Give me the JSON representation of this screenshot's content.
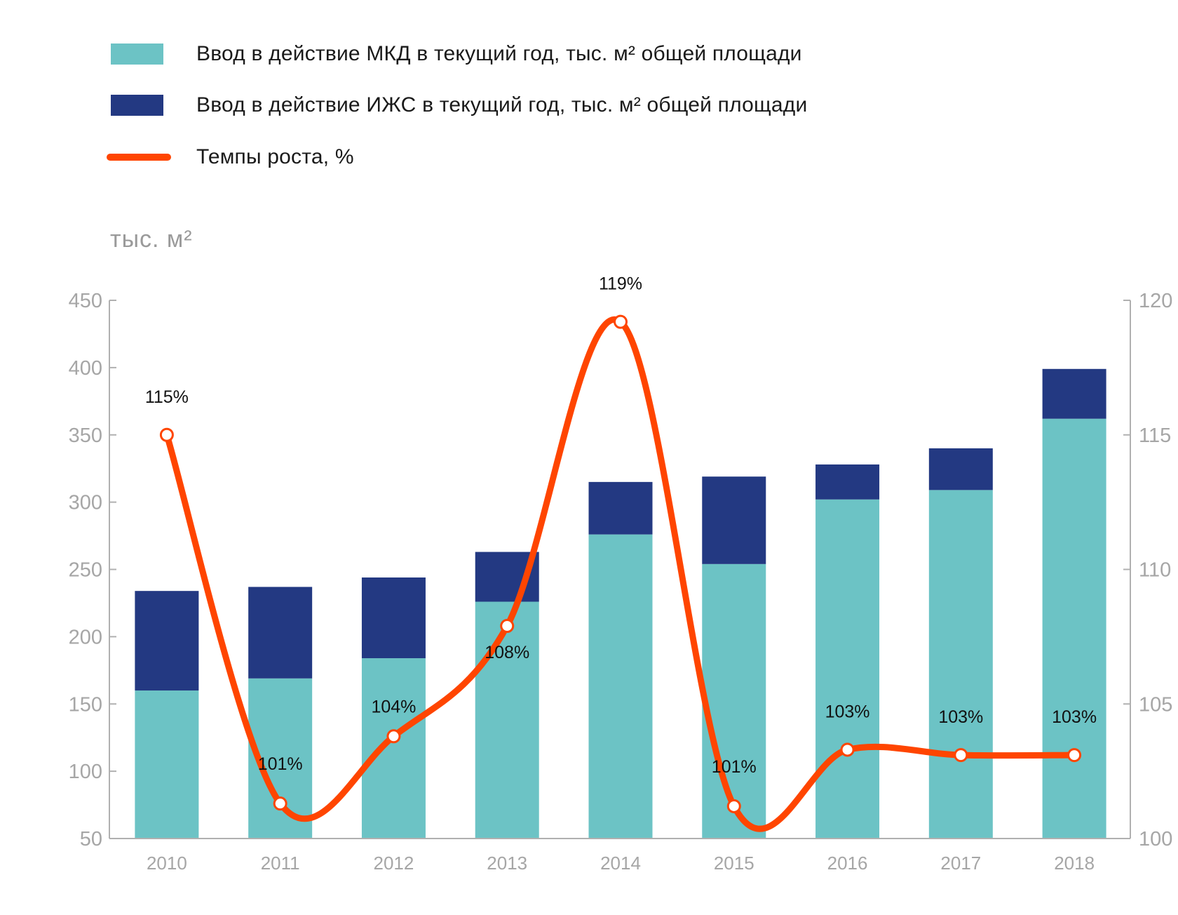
{
  "legend": [
    {
      "label": "Ввод в действие МКД в текущий год, тыс. м² общей площади",
      "color": "#6cc3c5",
      "kind": "bar"
    },
    {
      "label": "Ввод в действие ИЖС в текущий год, тыс. м² общей площади",
      "color": "#233982",
      "kind": "bar"
    },
    {
      "label": "Темпы роста, %",
      "color": "#ff4500",
      "kind": "line"
    }
  ],
  "chart_data": {
    "type": "bar",
    "subtype": "stacked-bar-with-line-secondary-axis",
    "title": "",
    "ylabel": "тыс. м²",
    "xlabel": "",
    "categories": [
      "2010",
      "2011",
      "2012",
      "2013",
      "2014",
      "2015",
      "2016",
      "2017",
      "2018"
    ],
    "series": [
      {
        "name": "Ввод в действие МКД в текущий год, тыс. м² общей площади",
        "type": "bar",
        "axis": "left",
        "color": "#6cc3c5",
        "values": [
          160,
          169,
          184,
          226,
          276,
          254,
          302,
          309,
          362
        ]
      },
      {
        "name": "Ввод в действие ИЖС в текущий год, тыс. м² общей площади",
        "type": "bar",
        "axis": "left",
        "color": "#233982",
        "values": [
          74,
          68,
          60,
          37,
          39,
          65,
          26,
          31,
          37
        ]
      },
      {
        "name": "Темпы роста, %",
        "type": "line",
        "axis": "right",
        "color": "#ff4500",
        "values": [
          115.0,
          101.3,
          103.8,
          107.9,
          119.2,
          101.2,
          103.3,
          103.1,
          103.1
        ],
        "labels": [
          "115%",
          "101%",
          "104%",
          "108%",
          "119%",
          "101%",
          "103%",
          "103%",
          "103%"
        ]
      }
    ],
    "ylim": [
      50,
      450
    ],
    "yticks": [
      "450",
      "400",
      "350",
      "300",
      "250",
      "200",
      "150",
      "100",
      "50"
    ],
    "ytick_values": [
      450,
      400,
      350,
      300,
      250,
      200,
      150,
      100,
      50
    ],
    "y2lim": [
      100,
      120
    ],
    "y2ticks": [
      "120",
      "115",
      "110",
      "105",
      "100"
    ],
    "y2tick_values": [
      120,
      115,
      110,
      105,
      100
    ],
    "grid": false,
    "legend_position": "top-left"
  }
}
